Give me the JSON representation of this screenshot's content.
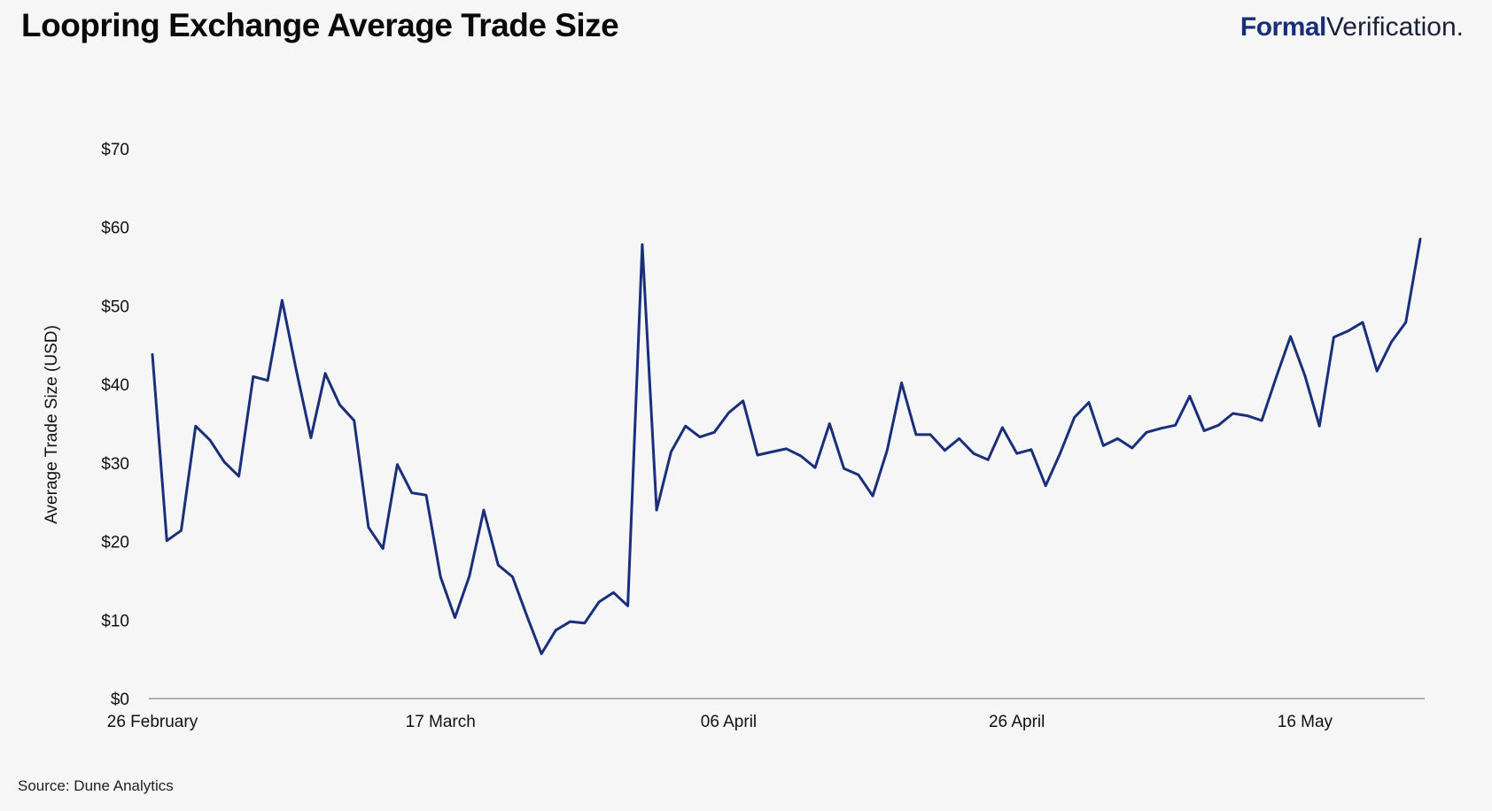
{
  "header": {
    "title": "Loopring Exchange Average Trade Size",
    "brand_bold": "Formal",
    "brand_light": "Verification."
  },
  "footer": {
    "source": "Source: Dune Analytics"
  },
  "colors": {
    "line": "#1a2f7a",
    "axis": "#9a9a9a",
    "background": "#f6f6f6"
  },
  "chart_data": {
    "type": "line",
    "title": "",
    "xlabel": "",
    "ylabel": "Average Trade Size (USD)",
    "ylim": [
      0,
      70
    ],
    "yticks": [
      0,
      10,
      20,
      30,
      40,
      50,
      60,
      70
    ],
    "ytick_labels": [
      "$0",
      "$10",
      "$20",
      "$30",
      "$40",
      "$50",
      "$60",
      "$70"
    ],
    "xtick_labels": [
      "26 February",
      "17 March",
      "06 April",
      "26 April",
      "16 May"
    ],
    "xtick_day_index": [
      0,
      20,
      40,
      60,
      80
    ],
    "grid": false,
    "series": [
      {
        "values": [
          43.8,
          20.1,
          21.4,
          34.7,
          32.9,
          30.1,
          28.3,
          41.0,
          40.5,
          50.7,
          41.7,
          33.2,
          41.4,
          37.4,
          35.4,
          21.8,
          19.1,
          29.8,
          26.2,
          25.9,
          15.5,
          10.3,
          15.6,
          24.0,
          17.0,
          15.5,
          10.5,
          5.7,
          8.7,
          9.8,
          9.6,
          12.3,
          13.5,
          11.8,
          57.8,
          24.0,
          31.4,
          34.7,
          33.3,
          33.9,
          36.4,
          37.9,
          31.0,
          31.4,
          31.8,
          30.9,
          29.4,
          35.0,
          29.3,
          28.5,
          25.8,
          31.6,
          40.2,
          33.6,
          33.6,
          31.6,
          33.1,
          31.2,
          30.4,
          34.5,
          31.2,
          31.7,
          27.1,
          31.2,
          35.8,
          37.7,
          32.2,
          33.1,
          31.9,
          33.9,
          34.4,
          34.8,
          38.5,
          34.1,
          34.8,
          36.3,
          36.0,
          35.4,
          40.9,
          46.1,
          41.1,
          34.7,
          46.0,
          46.8,
          47.9,
          41.7,
          45.4,
          47.9,
          58.5
        ]
      }
    ]
  }
}
